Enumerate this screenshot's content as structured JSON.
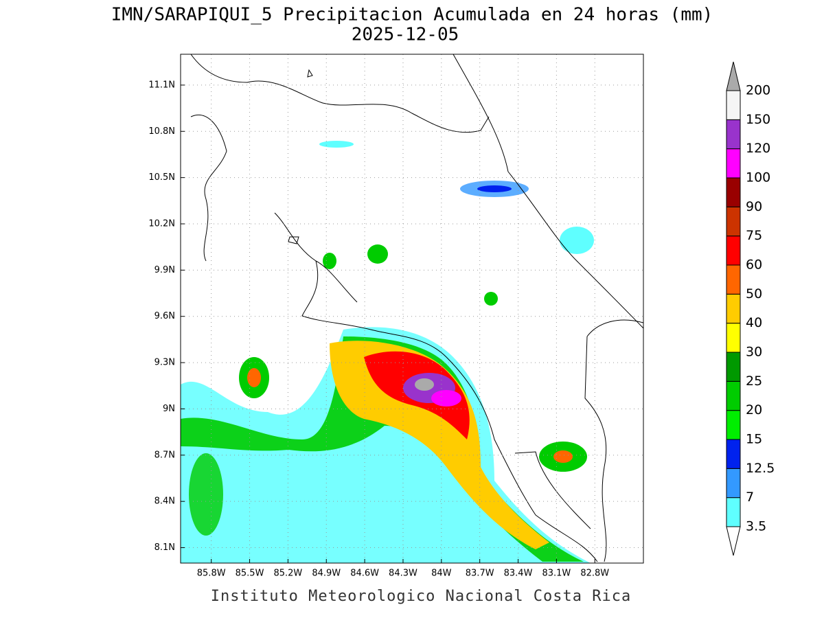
{
  "title": "IMN/SARAPIQUI_5 Precipitacion Acumulada en 24 horas (mm)",
  "subtitle": "2025-12-05",
  "map": {
    "xlim": [
      -86.04,
      -82.42
    ],
    "ylim": [
      8.0,
      11.3
    ],
    "xticks": [
      {
        "value": -85.8,
        "label": "85.8W"
      },
      {
        "value": -85.5,
        "label": "85.5W"
      },
      {
        "value": -85.2,
        "label": "85.2W"
      },
      {
        "value": -84.9,
        "label": "84.9W"
      },
      {
        "value": -84.6,
        "label": "84.6W"
      },
      {
        "value": -84.3,
        "label": "84.3W"
      },
      {
        "value": -84.0,
        "label": "84W"
      },
      {
        "value": -83.7,
        "label": "83.7W"
      },
      {
        "value": -83.4,
        "label": "83.4W"
      },
      {
        "value": -83.1,
        "label": "83.1W"
      },
      {
        "value": -82.8,
        "label": "82.8W"
      }
    ],
    "yticks": [
      {
        "value": 8.1,
        "label": "8.1N"
      },
      {
        "value": 8.4,
        "label": "8.4N"
      },
      {
        "value": 8.7,
        "label": "8.7N"
      },
      {
        "value": 9.0,
        "label": "9N"
      },
      {
        "value": 9.3,
        "label": "9.3N"
      },
      {
        "value": 9.6,
        "label": "9.6N"
      },
      {
        "value": 9.9,
        "label": "9.9N"
      },
      {
        "value": 10.2,
        "label": "10.2N"
      },
      {
        "value": 10.5,
        "label": "10.5N"
      },
      {
        "value": 10.8,
        "label": "10.8N"
      },
      {
        "value": 11.1,
        "label": "11.1N"
      }
    ],
    "grid": true
  },
  "colorbar": {
    "levels": [
      3.5,
      7,
      12.5,
      15,
      20,
      25,
      30,
      40,
      50,
      60,
      75,
      90,
      100,
      120,
      150,
      200
    ],
    "colors": [
      "#5fffff",
      "#3399ff",
      "#0022ee",
      "#00ee00",
      "#00cc00",
      "#009900",
      "#ffff00",
      "#ffcc00",
      "#ff6600",
      "#ff0000",
      "#cc3300",
      "#990000",
      "#ff00ff",
      "#9933cc",
      "#f5f5f5"
    ],
    "over_color": "#aaaaaa",
    "under_color": "#ffffff"
  },
  "footer": "Instituto Meteorologico Nacional Costa Rica"
}
